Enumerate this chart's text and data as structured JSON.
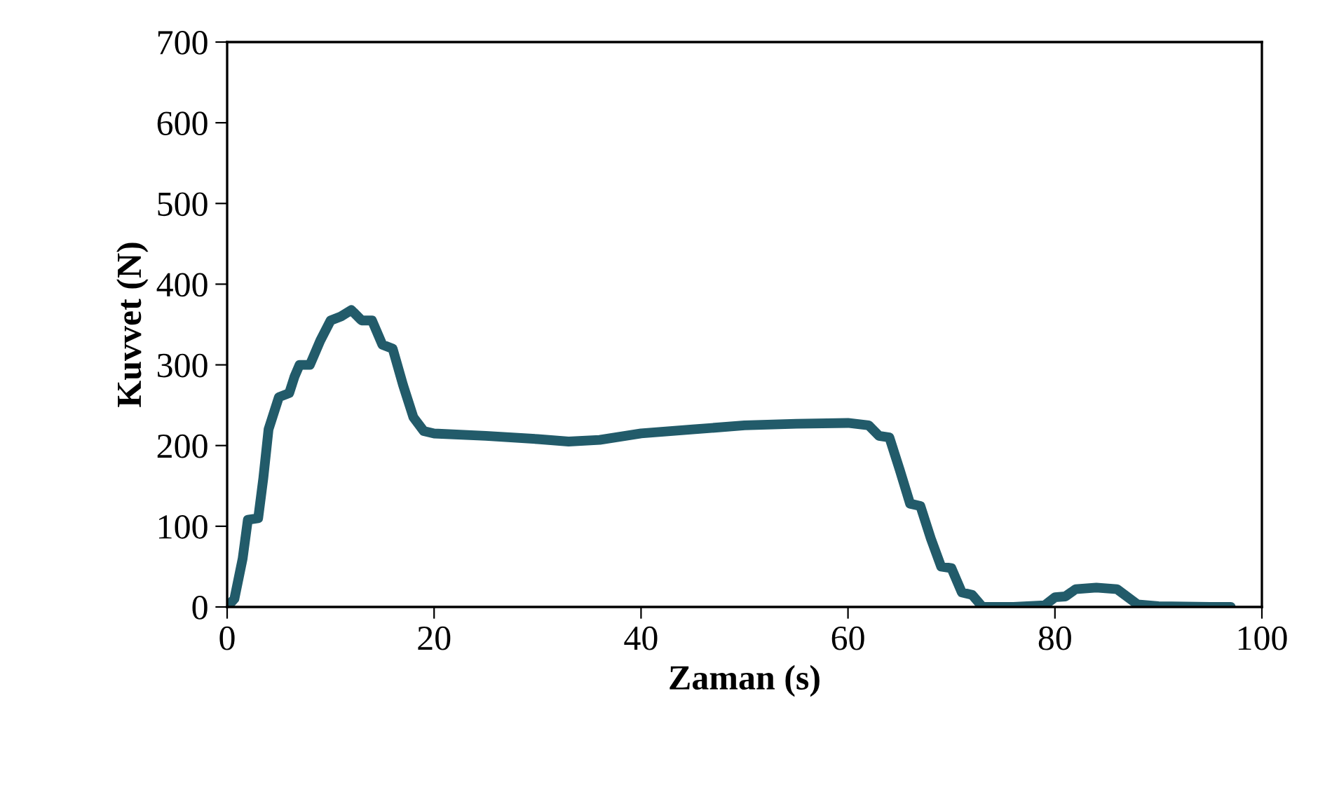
{
  "chart_data": {
    "type": "line",
    "xlabel": "Zaman (s)",
    "ylabel": "Kuvvet (N)",
    "series": [
      {
        "color": "#225b6a",
        "x": [
          0,
          0.7,
          1.5,
          2,
          3,
          3.5,
          4,
          5,
          6,
          6.5,
          7,
          8,
          9,
          10,
          11,
          12,
          13,
          14,
          15,
          16,
          17,
          18,
          19,
          20,
          25,
          30,
          33,
          36,
          40,
          45,
          50,
          55,
          60,
          62,
          63,
          64,
          65,
          66,
          67,
          68,
          69,
          70,
          71,
          72,
          73,
          76,
          79,
          80,
          81,
          82,
          84,
          86,
          88,
          90,
          95,
          97
        ],
        "values": [
          0,
          10,
          60,
          108,
          110,
          160,
          220,
          260,
          265,
          285,
          300,
          300,
          330,
          355,
          360,
          368,
          355,
          355,
          325,
          320,
          275,
          235,
          218,
          215,
          212,
          208,
          205,
          207,
          215,
          220,
          225,
          227,
          228,
          225,
          212,
          210,
          170,
          128,
          125,
          85,
          50,
          48,
          18,
          15,
          0,
          0,
          2,
          12,
          13,
          22,
          24,
          22,
          3,
          1,
          0,
          0
        ]
      }
    ],
    "xlim": [
      0,
      100
    ],
    "xticks": [
      0,
      20,
      40,
      60,
      80,
      100
    ],
    "ylim": [
      0,
      700
    ],
    "yticks": [
      0,
      100,
      200,
      300,
      400,
      500,
      600,
      700
    ],
    "grid": false,
    "legend": false,
    "marker": "none",
    "line_style": "solid"
  }
}
